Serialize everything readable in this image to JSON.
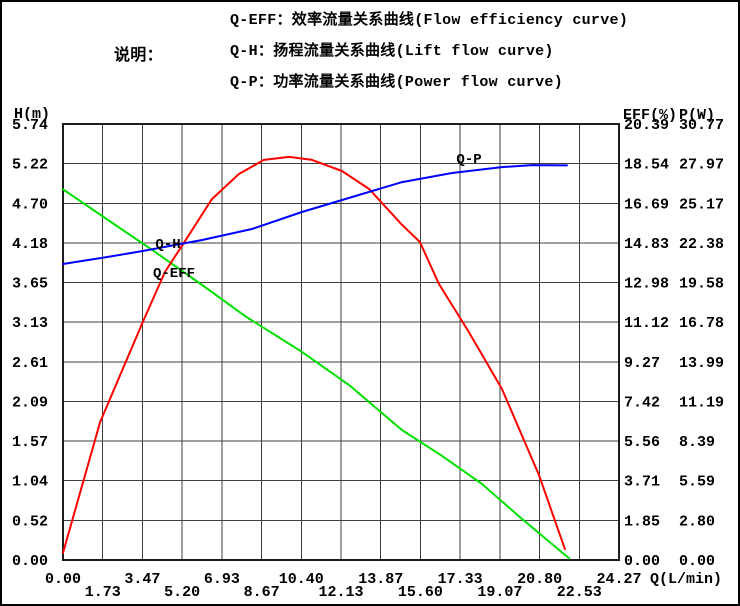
{
  "legend": {
    "title": "说明：",
    "lines": [
      "Q-EFF：效率流量关系曲线(Flow efficiency curve)",
      "Q-H：扬程流量关系曲线(Lift flow curve)",
      "Q-P：功率流量关系曲线(Power flow curve)"
    ]
  },
  "chart_data": {
    "type": "line",
    "title": "",
    "grid": true,
    "x": {
      "label": "Q(L/min)",
      "min": 0,
      "max": 24.27,
      "tick_labels": [
        "0.00",
        "1.73",
        "3.47",
        "5.20",
        "6.93",
        "8.67",
        "10.40",
        "12.13",
        "13.87",
        "15.60",
        "17.33",
        "19.07",
        "20.80",
        "22.53",
        "24.27"
      ]
    },
    "axes": {
      "H": {
        "label": "H(m)",
        "min": 0,
        "max": 5.74,
        "tick_labels": [
          "5.74",
          "5.22",
          "4.70",
          "4.18",
          "3.65",
          "3.13",
          "2.61",
          "2.09",
          "1.57",
          "1.04",
          "0.52",
          "0.00"
        ]
      },
      "EFF": {
        "label": "EFF(%)",
        "min": 0,
        "max": 20.39,
        "tick_labels": [
          "20.39",
          "18.54",
          "16.69",
          "14.83",
          "12.98",
          "11.12",
          "9.27",
          "7.42",
          "5.56",
          "3.71",
          "1.85",
          "0.00"
        ]
      },
      "P": {
        "label": "P(W)",
        "min": 0,
        "max": 30.77,
        "tick_labels": [
          "30.77",
          "27.97",
          "25.17",
          "22.38",
          "19.58",
          "16.78",
          "13.99",
          "11.19",
          "8.39",
          "5.59",
          "2.80",
          "0.00"
        ]
      }
    },
    "series": [
      {
        "name": "Q-H",
        "axis": "H",
        "color": "#00e000",
        "points": [
          [
            0,
            4.88
          ],
          [
            2,
            4.47
          ],
          [
            4,
            4.06
          ],
          [
            6.07,
            3.62
          ],
          [
            8,
            3.2
          ],
          [
            10.43,
            2.74
          ],
          [
            12.5,
            2.3
          ],
          [
            14.8,
            1.71
          ],
          [
            16.5,
            1.38
          ],
          [
            18.29,
            1.0
          ],
          [
            20,
            0.55
          ],
          [
            22.1,
            0.02
          ]
        ]
      },
      {
        "name": "Q-EFF",
        "axis": "EFF",
        "color": "#ff0000",
        "points": [
          [
            0,
            0.33
          ],
          [
            1.62,
            6.45
          ],
          [
            3.45,
            11.04
          ],
          [
            4.45,
            13.47
          ],
          [
            5.41,
            15.05
          ],
          [
            6.5,
            16.88
          ],
          [
            7.68,
            18.05
          ],
          [
            8.77,
            18.71
          ],
          [
            9.87,
            18.85
          ],
          [
            10.87,
            18.71
          ],
          [
            12.18,
            18.19
          ],
          [
            13.36,
            17.35
          ],
          [
            14.8,
            15.67
          ],
          [
            15.58,
            14.87
          ],
          [
            16.41,
            12.91
          ],
          [
            17.72,
            10.66
          ],
          [
            19.16,
            8.0
          ],
          [
            20.78,
            3.97
          ],
          [
            21.91,
            0.51
          ]
        ]
      },
      {
        "name": "Q-P",
        "axis": "P",
        "color": "#0000ff",
        "points": [
          [
            0,
            20.89
          ],
          [
            2,
            21.4
          ],
          [
            3.45,
            21.8
          ],
          [
            6.07,
            22.58
          ],
          [
            8.25,
            23.36
          ],
          [
            10.43,
            24.56
          ],
          [
            12.62,
            25.62
          ],
          [
            14.8,
            26.67
          ],
          [
            16.98,
            27.31
          ],
          [
            19.16,
            27.73
          ],
          [
            20.47,
            27.87
          ],
          [
            22,
            27.85
          ]
        ]
      }
    ],
    "curve_labels": [
      {
        "text": "Q-H"
      },
      {
        "text": "Q-EFF"
      },
      {
        "text": "Q-P"
      }
    ]
  },
  "colors": {
    "background": "#ffffff",
    "grid": "#3f3f3f",
    "plot_border": "#1d1d1d",
    "text": "#000000",
    "q_h_curve": "#00e000",
    "q_eff_curve": "#ff0000",
    "q_p_curve": "#0000ff"
  }
}
